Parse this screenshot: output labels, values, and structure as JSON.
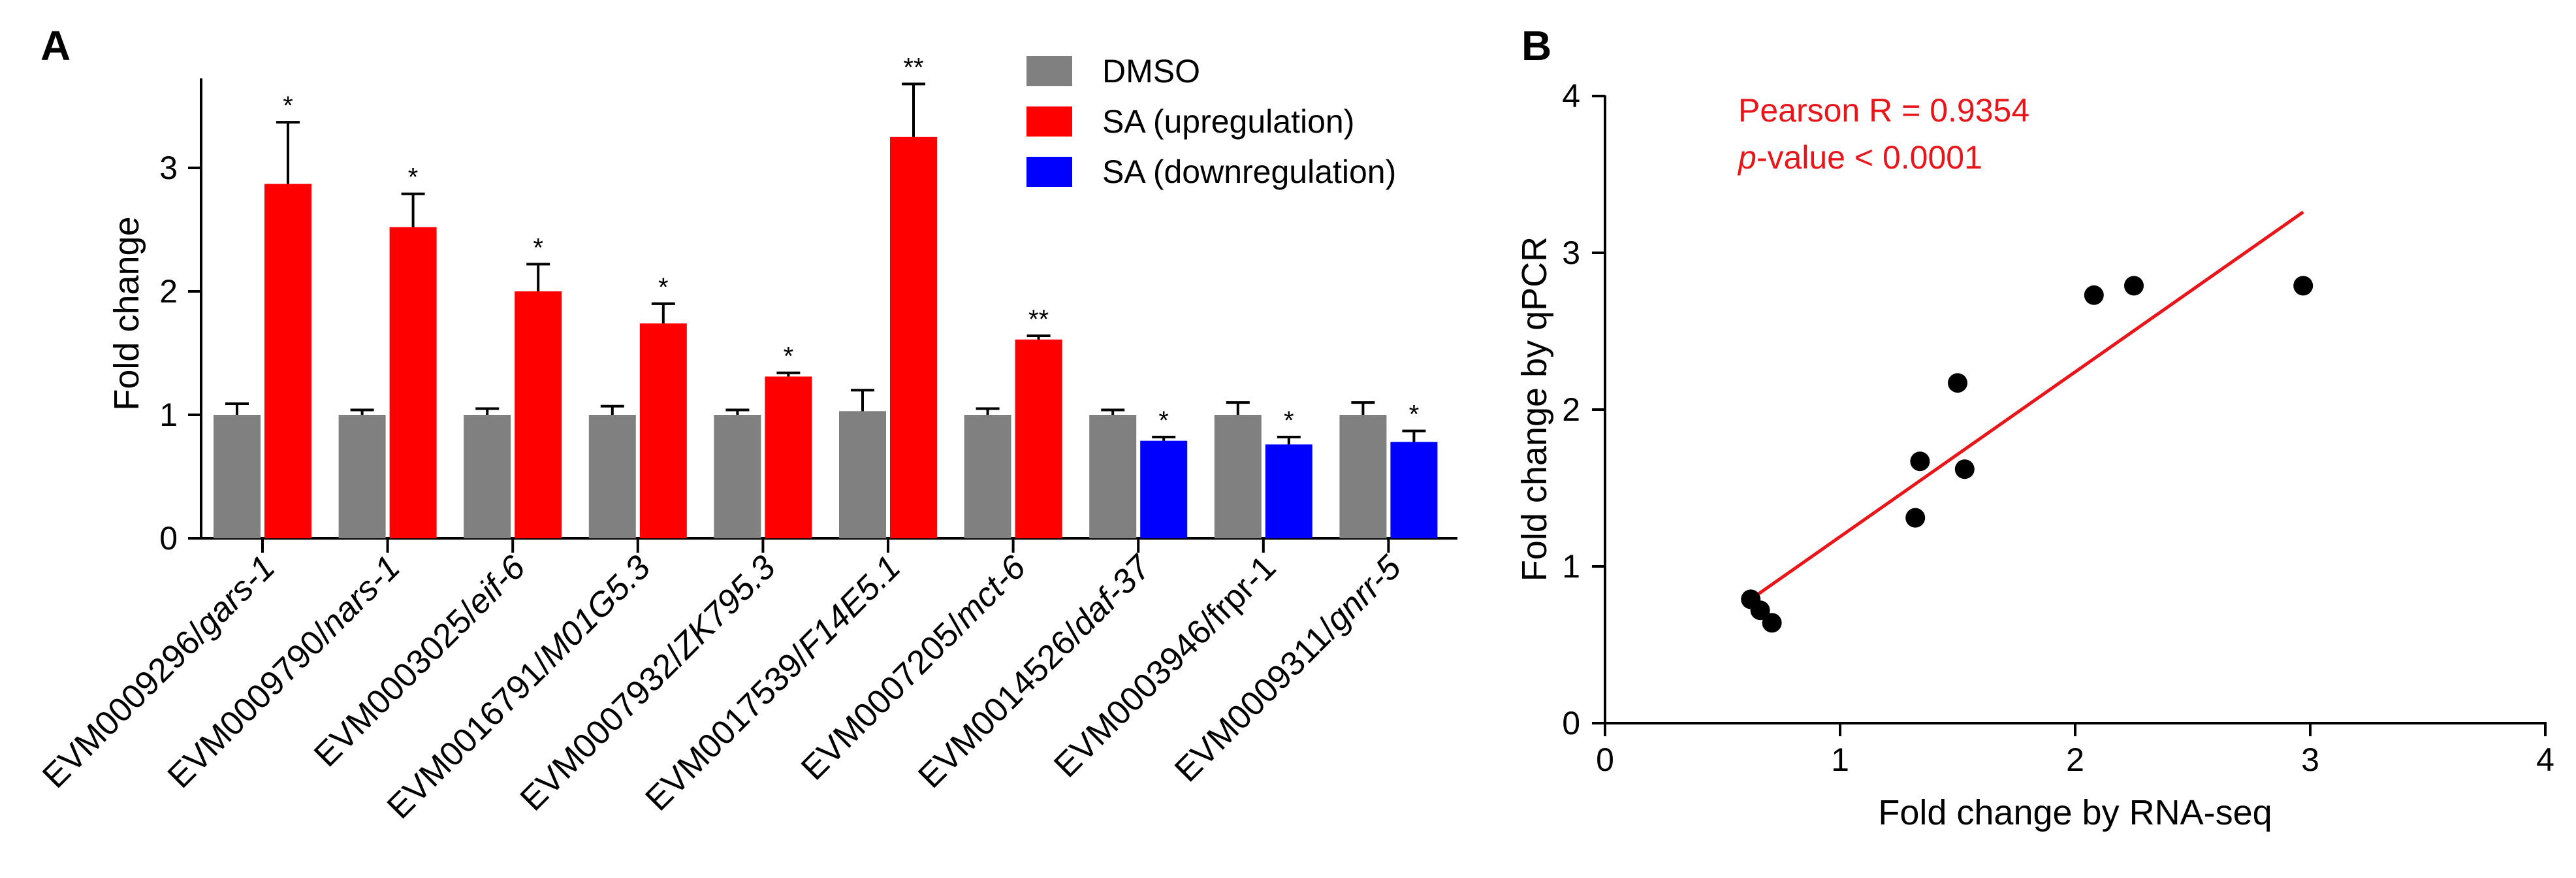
{
  "panels": {
    "a_letter": "A",
    "b_letter": "B"
  },
  "colors": {
    "dmso": "#808080",
    "up": "#ff0000",
    "down": "#0000ff",
    "fit_line": "#e8161b",
    "points": "#000000"
  },
  "chart_data": [
    {
      "type": "bar",
      "panel": "A",
      "ylabel": "Fold change",
      "ylim": [
        0,
        3.6
      ],
      "yticks": [
        0,
        1,
        2,
        3
      ],
      "legend": {
        "position": "top-right",
        "entries": [
          {
            "label": "DMSO",
            "color": "#808080"
          },
          {
            "label": "SA (upregulation)",
            "color": "#ff0000"
          },
          {
            "label": "SA (downregulation)",
            "color": "#0000ff"
          }
        ]
      },
      "categories": [
        {
          "prefix": "EVM0009296/",
          "gene": "gars-1",
          "italic": true
        },
        {
          "prefix": "EVM0009790/",
          "gene": "nars-1",
          "italic": true
        },
        {
          "prefix": "EVM0003025/",
          "gene": "eif-6",
          "italic": true
        },
        {
          "prefix": "EVM0016791/",
          "gene": "M01G5.3",
          "italic": true
        },
        {
          "prefix": "EVM0007932/",
          "gene": "ZK795.3",
          "italic": true
        },
        {
          "prefix": "EVM0017539/",
          "gene": "F14E5.1",
          "italic": true
        },
        {
          "prefix": "EVM0007205/",
          "gene": "mct-6",
          "italic": true
        },
        {
          "prefix": "EVM0014526/",
          "gene": "daf-37",
          "italic": true
        },
        {
          "prefix": "EVM0003946/",
          "gene": "frpr-1",
          "italic": false
        },
        {
          "prefix": "EVM0009311/",
          "gene": "gnrr-5",
          "italic": true
        }
      ],
      "series": [
        {
          "name": "DMSO",
          "values": [
            1.0,
            1.0,
            1.0,
            1.0,
            1.0,
            1.03,
            1.0,
            1.0,
            1.0,
            1.0
          ],
          "errors": [
            0.09,
            0.04,
            0.05,
            0.07,
            0.04,
            0.17,
            0.05,
            0.04,
            0.1,
            0.1
          ]
        },
        {
          "name": "SA",
          "values": [
            2.87,
            2.52,
            2.0,
            1.74,
            1.31,
            3.25,
            1.61,
            0.79,
            0.76,
            0.78
          ],
          "errors": [
            0.5,
            0.27,
            0.22,
            0.16,
            0.03,
            0.43,
            0.03,
            0.03,
            0.06,
            0.09
          ],
          "direction": [
            "up",
            "up",
            "up",
            "up",
            "up",
            "up",
            "up",
            "down",
            "down",
            "down"
          ]
        }
      ],
      "significance": [
        "*",
        "*",
        "*",
        "*",
        "*",
        "**",
        "**",
        "*",
        "*",
        "*"
      ]
    },
    {
      "type": "scatter",
      "panel": "B",
      "xlabel": "Fold change by RNA-seq",
      "ylabel": "Fold change by qPCR",
      "xlim": [
        0,
        4
      ],
      "ylim": [
        0,
        4
      ],
      "xticks": [
        0,
        1,
        2,
        3,
        4
      ],
      "yticks": [
        0,
        1,
        2,
        3,
        4
      ],
      "points": [
        {
          "x": 0.62,
          "y": 0.79
        },
        {
          "x": 0.66,
          "y": 0.72
        },
        {
          "x": 0.71,
          "y": 0.64
        },
        {
          "x": 1.32,
          "y": 1.31
        },
        {
          "x": 1.34,
          "y": 1.67
        },
        {
          "x": 1.5,
          "y": 2.17
        },
        {
          "x": 1.53,
          "y": 1.62
        },
        {
          "x": 2.08,
          "y": 2.73
        },
        {
          "x": 2.25,
          "y": 2.79
        },
        {
          "x": 2.97,
          "y": 2.79
        }
      ],
      "fit_line": {
        "x": [
          0.62,
          2.97
        ],
        "y": [
          0.79,
          3.26
        ]
      },
      "annotations": {
        "pearson": "Pearson R = 0.9354",
        "pvalue_italic": "p",
        "pvalue_rest": "-value < 0.0001"
      }
    }
  ]
}
